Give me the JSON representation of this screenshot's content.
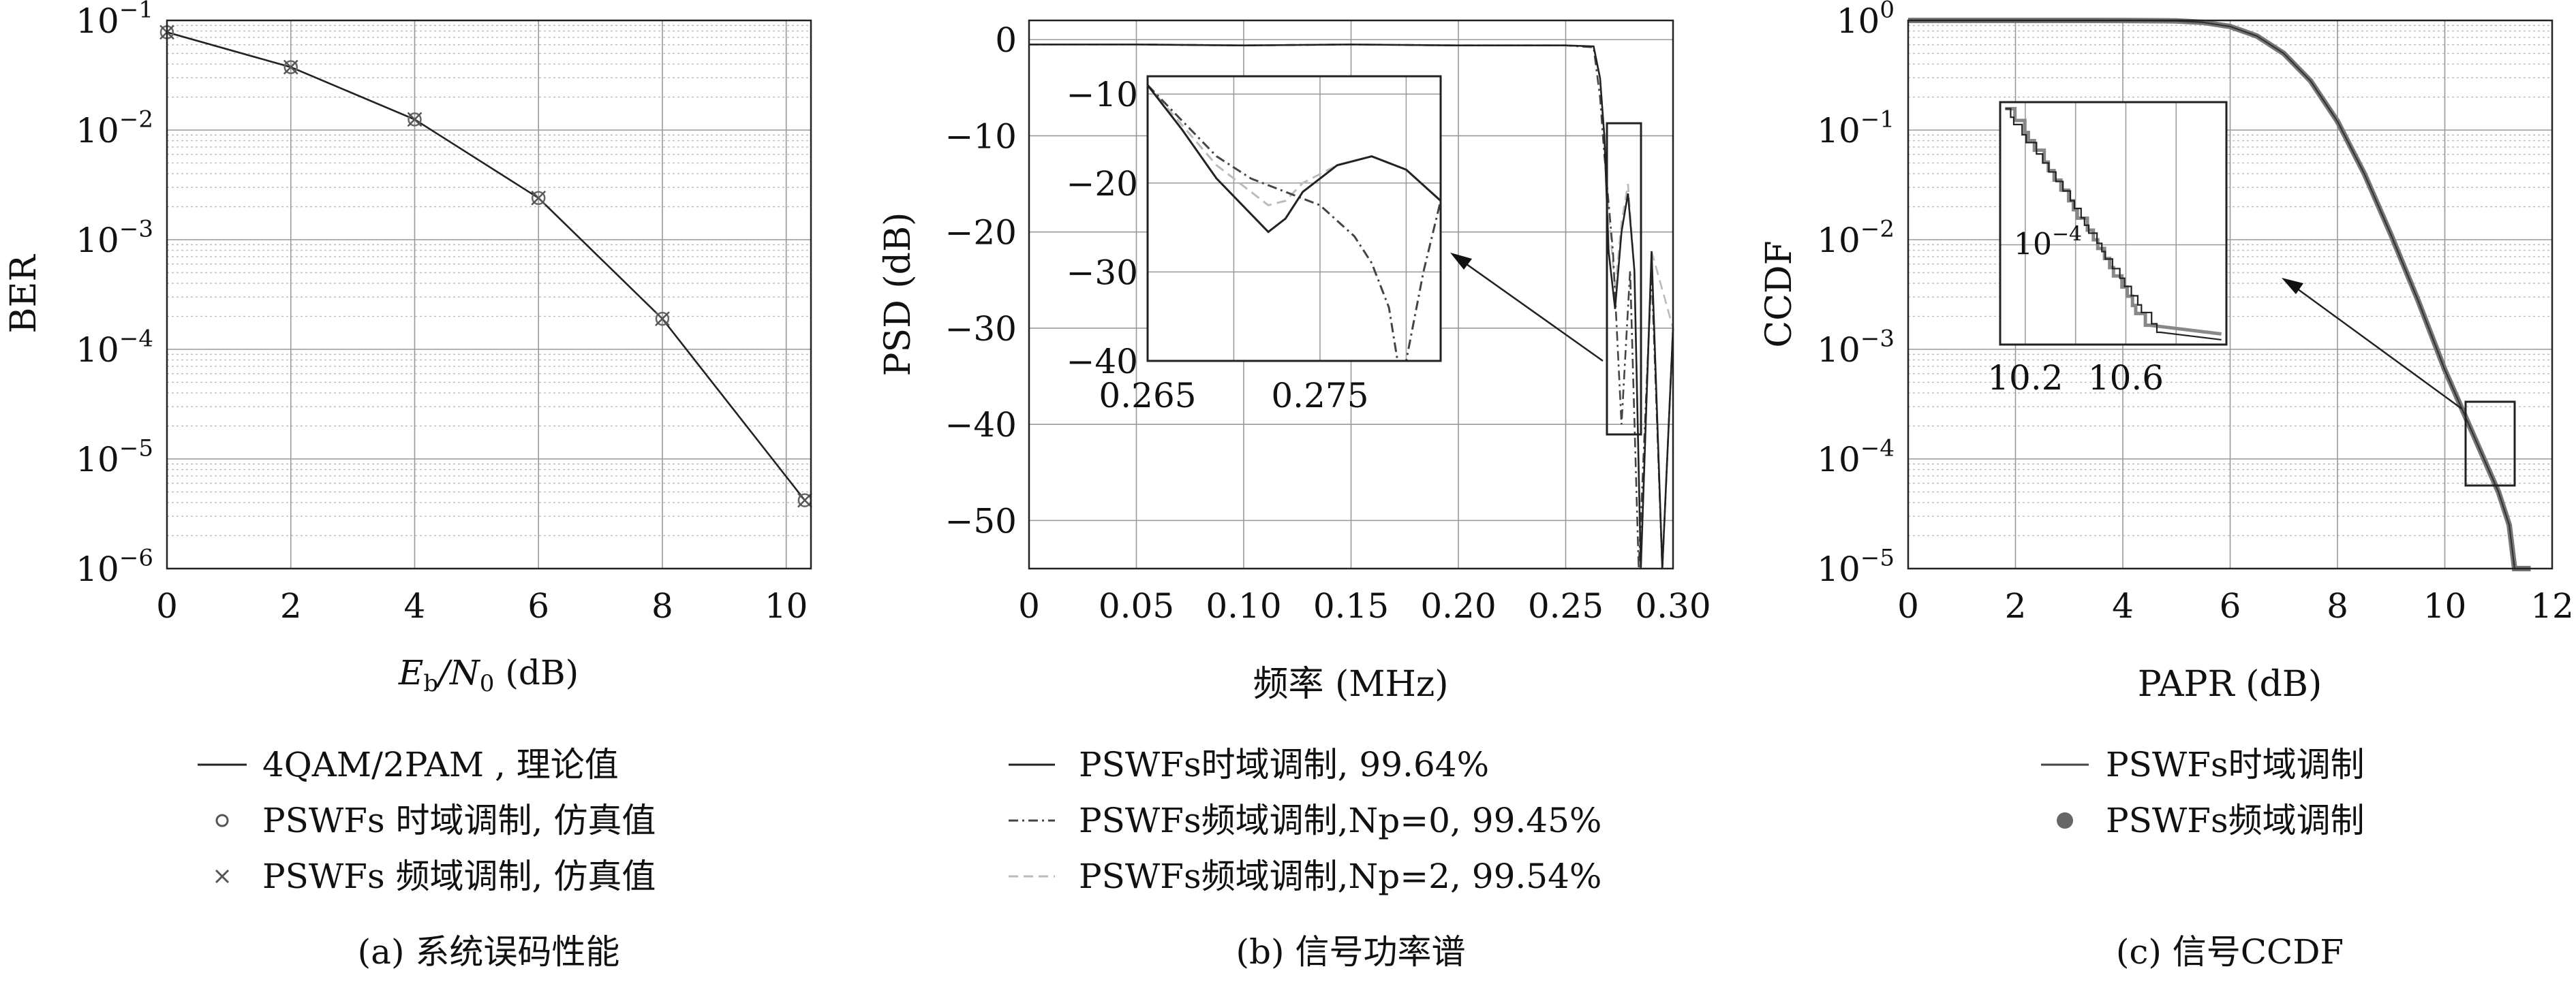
{
  "chart_data": [
    {
      "type": "line",
      "caption": "(a) 系统误码性能",
      "xlabel_main": "E",
      "xlabel_sub1": "b",
      "xlabel_mid": "/N",
      "xlabel_sub2": "0",
      "xlabel_unit": " (dB)",
      "ylabel": "BER",
      "xlim": [
        0,
        10.4
      ],
      "ylim": [
        1e-06,
        0.1
      ],
      "yscale": "log",
      "grid": true,
      "x_ticks": [
        "0",
        "2",
        "4",
        "6",
        "8",
        "10"
      ],
      "y_ticks": [
        {
          "base": "10",
          "exp": "−1"
        },
        {
          "base": "10",
          "exp": "−2"
        },
        {
          "base": "10",
          "exp": "−3"
        },
        {
          "base": "10",
          "exp": "−4"
        },
        {
          "base": "10",
          "exp": "−5"
        },
        {
          "base": "10",
          "exp": "−6"
        }
      ],
      "series": [
        {
          "name": "4QAM/2PAM , 理论值",
          "marker": "line",
          "x": [
            0,
            2,
            4,
            6,
            8,
            10.3
          ],
          "y": [
            0.078,
            0.0375,
            0.0125,
            0.0024,
            0.00019,
            4.2e-06
          ]
        },
        {
          "name": "PSWFs 时域调制, 仿真值",
          "marker": "circle",
          "x": [
            0,
            2,
            4,
            6,
            8,
            10.3
          ],
          "y": [
            0.078,
            0.0375,
            0.0125,
            0.0024,
            0.00019,
            4.2e-06
          ]
        },
        {
          "name": "PSWFs 频域调制, 仿真值",
          "marker": "x",
          "x": [
            0,
            2,
            4,
            6,
            8,
            10.3
          ],
          "y": [
            0.078,
            0.0375,
            0.0125,
            0.0024,
            0.00019,
            4.2e-06
          ]
        }
      ],
      "legend_position": "below"
    },
    {
      "type": "line",
      "caption": "(b) 信号功率谱",
      "xlabel": "频率 (MHz)",
      "ylabel": "PSD (dB)",
      "xlim": [
        0,
        0.3
      ],
      "ylim": [
        -55,
        2
      ],
      "grid": true,
      "x_ticks": [
        "0",
        "0.05",
        "0.10",
        "0.15",
        "0.20",
        "0.25",
        "0.30"
      ],
      "y_ticks": [
        "0",
        "−10",
        "−20",
        "−30",
        "−40",
        "−50"
      ],
      "series": [
        {
          "name": "PSWFs时域调制, 99.64%",
          "style": "solid",
          "x": [
            0,
            0.05,
            0.1,
            0.15,
            0.2,
            0.25,
            0.263,
            0.266,
            0.268,
            0.27,
            0.273,
            0.276,
            0.279,
            0.282,
            0.285,
            0.29,
            0.295,
            0.3
          ],
          "y": [
            -0.5,
            -0.5,
            -0.6,
            -0.5,
            -0.6,
            -0.6,
            -0.7,
            -4,
            -10,
            -22,
            -28,
            -20,
            -16,
            -24,
            -55,
            -22,
            -55,
            -30
          ]
        },
        {
          "name": "PSWFs频域调制,Np=0, 99.45%",
          "style": "dashdot",
          "x": [
            0,
            0.05,
            0.1,
            0.15,
            0.2,
            0.25,
            0.263,
            0.266,
            0.268,
            0.272,
            0.276,
            0.28,
            0.284,
            0.29,
            0.295,
            0.3
          ],
          "y": [
            -0.5,
            -0.5,
            -0.6,
            -0.5,
            -0.6,
            -0.6,
            -0.8,
            -6,
            -12,
            -22,
            -40,
            -24,
            -55,
            -24,
            -55,
            -30
          ]
        },
        {
          "name": "PSWFs频域调制,Np=2, 99.54%",
          "style": "dashed",
          "x": [
            0,
            0.05,
            0.1,
            0.15,
            0.2,
            0.25,
            0.263,
            0.266,
            0.268,
            0.27,
            0.273,
            0.276,
            0.279,
            0.282,
            0.285,
            0.29,
            0.3
          ],
          "y": [
            -0.5,
            -0.5,
            -0.6,
            -0.5,
            -0.6,
            -0.6,
            -0.7,
            -4,
            -10,
            -18,
            -26,
            -19,
            -15,
            -24,
            -55,
            -22,
            -30
          ]
        }
      ],
      "inset": {
        "xlim": [
          0.265,
          0.282
        ],
        "ylim": [
          -40,
          -8
        ],
        "x_ticks": [
          "0.265",
          "0.275"
        ],
        "y_ticks": [
          "−10",
          "−20",
          "−30",
          "−40"
        ],
        "series": [
          {
            "style": "solid",
            "x": [
              0.265,
              0.267,
              0.269,
              0.271,
              0.272,
              0.273,
              0.274,
              0.276,
              0.278,
              0.28,
              0.282
            ],
            "y": [
              -9,
              -14,
              -19.5,
              -23.5,
              -25.5,
              -24,
              -21,
              -18,
              -17,
              -18.5,
              -22
            ]
          },
          {
            "style": "dashdot",
            "x": [
              0.265,
              0.267,
              0.269,
              0.271,
              0.273,
              0.275,
              0.277,
              0.278,
              0.279,
              0.2795,
              0.28,
              0.281,
              0.282
            ],
            "y": [
              -9,
              -13,
              -17,
              -19.5,
              -21,
              -22.5,
              -26,
              -29,
              -34,
              -40,
              -40,
              -30,
              -22
            ]
          },
          {
            "style": "dashed",
            "x": [
              0.265,
              0.267,
              0.269,
              0.271,
              0.272,
              0.273,
              0.274,
              0.276,
              0.278,
              0.28,
              0.282
            ],
            "y": [
              -9,
              -13.5,
              -18,
              -21,
              -22.5,
              -22,
              -20,
              -18,
              -17,
              -18.5,
              -22
            ]
          }
        ]
      },
      "legend_position": "below"
    },
    {
      "type": "line",
      "caption": "(c) 信号CCDF",
      "xlabel": "PAPR (dB)",
      "ylabel": "CCDF",
      "xlim": [
        0,
        12
      ],
      "ylim": [
        1e-05,
        1
      ],
      "yscale": "log",
      "grid": true,
      "x_ticks": [
        "0",
        "2",
        "4",
        "6",
        "8",
        "10",
        "12"
      ],
      "y_ticks": [
        {
          "base": "10",
          "exp": "0"
        },
        {
          "base": "10",
          "exp": "−1"
        },
        {
          "base": "10",
          "exp": "−2"
        },
        {
          "base": "10",
          "exp": "−3"
        },
        {
          "base": "10",
          "exp": "−4"
        },
        {
          "base": "10",
          "exp": "−5"
        }
      ],
      "series": [
        {
          "name": "PSWFs时域调制",
          "style": "solid",
          "x": [
            0,
            4,
            5,
            5.5,
            6,
            6.5,
            7,
            7.5,
            8,
            8.5,
            9,
            9.5,
            10,
            10.5,
            11,
            11.2,
            11.3,
            11.6
          ],
          "y": [
            1,
            0.999,
            0.99,
            0.96,
            0.88,
            0.72,
            0.5,
            0.28,
            0.12,
            0.04,
            0.011,
            0.0028,
            0.00065,
            0.00018,
            5e-05,
            2.5e-05,
            1e-05,
            1e-05
          ]
        },
        {
          "name": "PSWFs频域调制",
          "style": "thick",
          "x": [
            0,
            4,
            5,
            5.5,
            6,
            6.5,
            7,
            7.5,
            8,
            8.5,
            9,
            9.5,
            10,
            10.5,
            11,
            11.2,
            11.3,
            11.6
          ],
          "y": [
            1,
            0.999,
            0.99,
            0.96,
            0.88,
            0.72,
            0.5,
            0.28,
            0.12,
            0.04,
            0.011,
            0.0028,
            0.00065,
            0.00018,
            5e-05,
            2.5e-05,
            1e-05,
            1e-05
          ]
        }
      ],
      "inset": {
        "xlim": [
          10.1,
          11.0
        ],
        "ylim": [
          2e-05,
          0.001
        ],
        "x_ticks": [
          "10.2",
          "10.6"
        ],
        "y_ticks": [
          {
            "base": "10",
            "exp": "−4"
          }
        ]
      },
      "legend_position": "below"
    }
  ]
}
